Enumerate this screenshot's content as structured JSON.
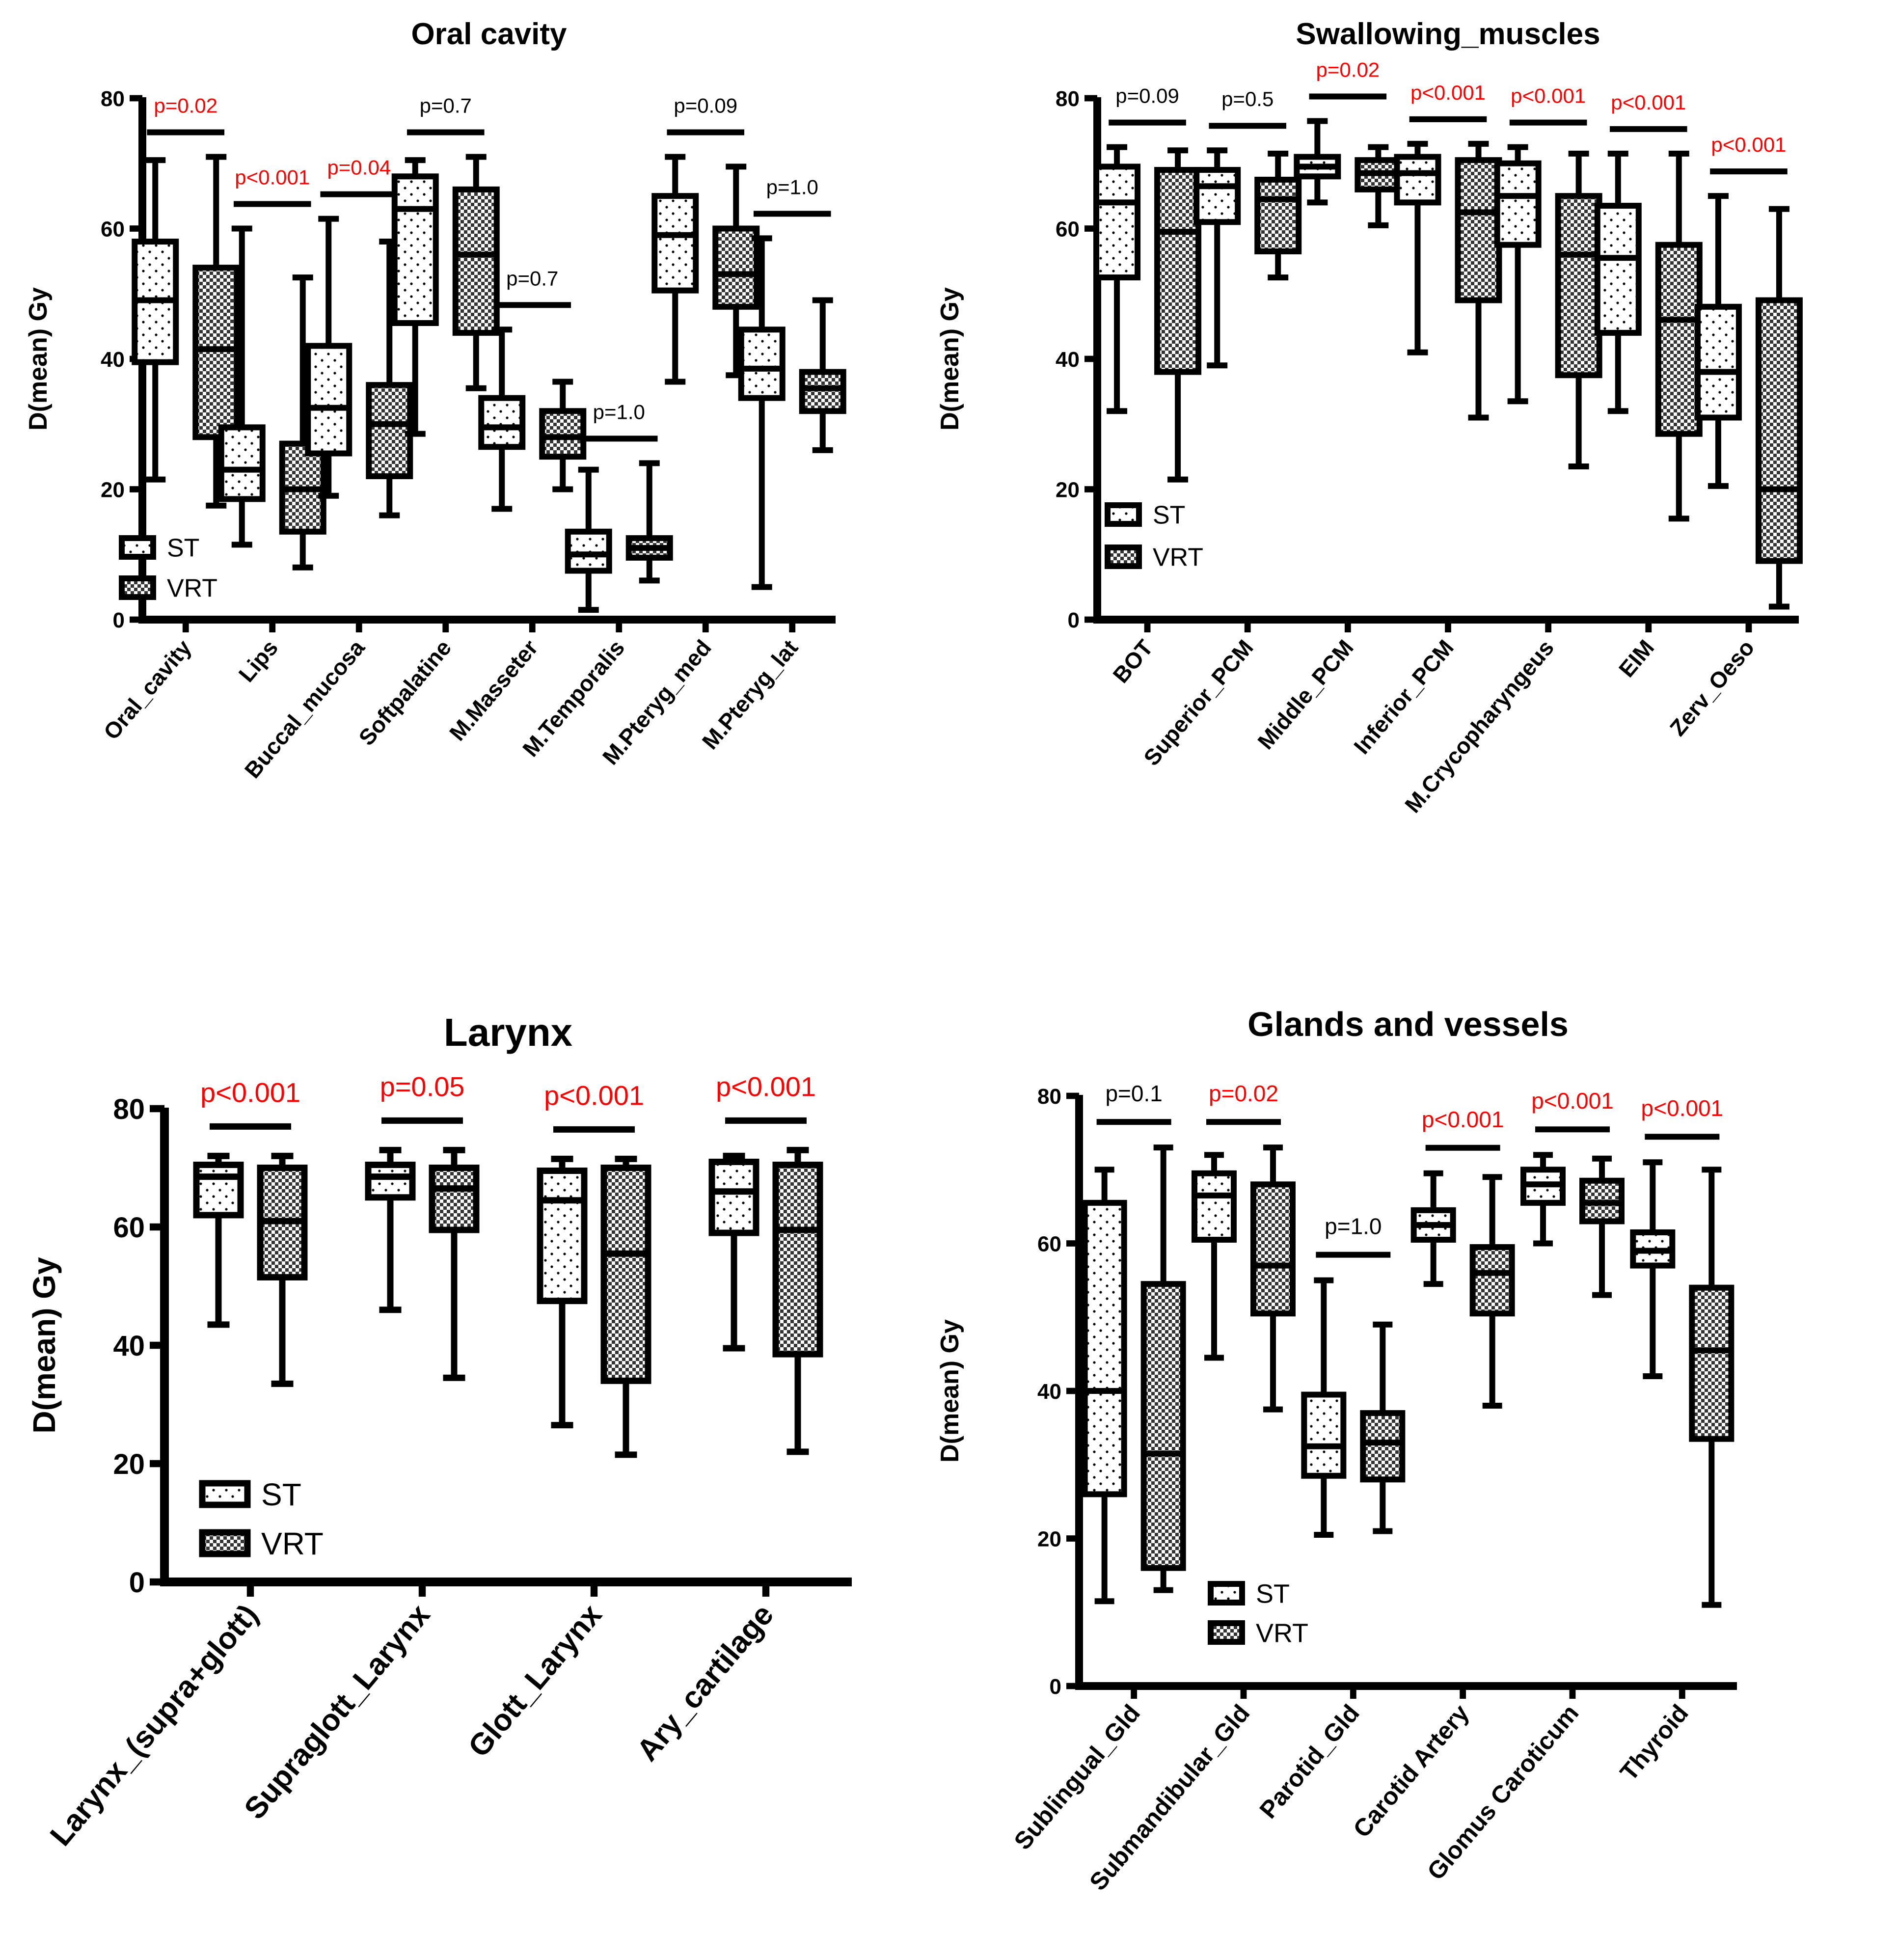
{
  "figure": {
    "legend_labels": [
      "ST",
      "VRT"
    ],
    "colors": {
      "significant": "#ff0000",
      "ns": "#000000",
      "stroke": "#000000",
      "fill": "#ffffff"
    }
  },
  "chart_data": [
    {
      "type": "box",
      "title": "Oral cavity",
      "ylabel": "D(mean) Gy",
      "ylim": [
        0,
        80
      ],
      "yticks": [
        0,
        20,
        40,
        60,
        80
      ],
      "legend_position": "bottom-left",
      "series": [
        "ST",
        "VRT"
      ],
      "categories": [
        "Oral_cavity",
        "Lips",
        "Buccal_mucosa",
        "Softpalatine",
        "M.Masseter",
        "M.Temporalis",
        "M.Pteryg_med",
        "M.Pteryg_lat"
      ],
      "boxes": [
        {
          "ST": [
            21.5,
            39.5,
            49,
            58,
            70.5
          ],
          "VRT": [
            17.5,
            28,
            41.5,
            54,
            71
          ]
        },
        {
          "ST": [
            11.5,
            18.5,
            23,
            29.5,
            60
          ],
          "VRT": [
            8,
            13.5,
            20,
            27,
            52.5
          ]
        },
        {
          "ST": [
            19,
            25.5,
            32.5,
            42,
            61.5
          ],
          "VRT": [
            16,
            22,
            30,
            36,
            58
          ]
        },
        {
          "ST": [
            28.5,
            45.5,
            63,
            68,
            70.5
          ],
          "VRT": [
            35.5,
            44,
            56,
            66,
            71
          ]
        },
        {
          "ST": [
            17,
            26.5,
            29.5,
            34,
            44.5
          ],
          "VRT": [
            20,
            25,
            28,
            32,
            36.5
          ]
        },
        {
          "ST": [
            1.5,
            7.5,
            10,
            13.5,
            23
          ],
          "VRT": [
            6,
            9.5,
            11,
            12.5,
            24
          ]
        },
        {
          "ST": [
            36.5,
            50.5,
            59,
            65,
            71
          ],
          "VRT": [
            37.5,
            48,
            53,
            60,
            69.5
          ]
        },
        {
          "ST": [
            5,
            34,
            38.5,
            44.5,
            58.5
          ],
          "VRT": [
            26,
            32,
            35.5,
            38,
            49
          ]
        }
      ],
      "pvalues": [
        "p=0.02",
        "p<0.001",
        "p=0.04",
        "p=0.7",
        "p=0.7",
        "p=1.0",
        "p=0.09",
        "p=1.0"
      ],
      "pvalue_significant": [
        true,
        true,
        true,
        false,
        false,
        false,
        false,
        false
      ]
    },
    {
      "type": "box",
      "title": "Swallowing_muscles",
      "ylabel": "D(mean) Gy",
      "ylim": [
        0,
        80
      ],
      "yticks": [
        0,
        20,
        40,
        60,
        80
      ],
      "legend_position": "bottom-left",
      "series": [
        "ST",
        "VRT"
      ],
      "categories": [
        "BOT",
        "Superior_PCM",
        "Middle_PCM",
        "Inferior_PCM",
        "M.Crycopharyngeus",
        "EIM",
        "Zerv_Oeso"
      ],
      "boxes": [
        {
          "ST": [
            32,
            52.5,
            64,
            69.5,
            72.5
          ],
          "VRT": [
            21.5,
            38,
            59.5,
            69,
            72
          ]
        },
        {
          "ST": [
            39,
            61,
            66.5,
            69,
            72
          ],
          "VRT": [
            52.5,
            56.5,
            64.5,
            67.5,
            71.5
          ]
        },
        {
          "ST": [
            64,
            68,
            69.5,
            71,
            76.5
          ],
          "VRT": [
            60.5,
            66,
            68.5,
            70.5,
            72.5
          ]
        },
        {
          "ST": [
            41,
            64,
            68.5,
            71,
            73
          ],
          "VRT": [
            31,
            49,
            62.5,
            70.5,
            73
          ]
        },
        {
          "ST": [
            33.5,
            57.5,
            65,
            70,
            72.5
          ],
          "VRT": [
            23.5,
            37.5,
            56,
            65,
            71.5
          ]
        },
        {
          "ST": [
            32,
            44,
            55.5,
            63.5,
            71.5
          ],
          "VRT": [
            15.5,
            28.5,
            46,
            57.5,
            71.5
          ]
        },
        {
          "ST": [
            20.5,
            31,
            38,
            48,
            65
          ],
          "VRT": [
            2,
            9,
            20,
            49,
            63
          ]
        }
      ],
      "pvalues": [
        "p=0.09",
        "p=0.5",
        "p=0.02",
        "p<0.001",
        "p<0.001",
        "p<0.001",
        "p<0.001"
      ],
      "pvalue_significant": [
        false,
        false,
        true,
        true,
        true,
        true,
        true
      ]
    },
    {
      "type": "box",
      "title": "Larynx",
      "ylabel": "D(mean) Gy",
      "ylim": [
        0,
        80
      ],
      "yticks": [
        0,
        20,
        40,
        60,
        80
      ],
      "legend_position": "bottom-left",
      "series": [
        "ST",
        "VRT"
      ],
      "categories": [
        "Larynx_(supra+glott)",
        "Supraglott_Larynx",
        "Glott_Larynx",
        "Ary_cartilage"
      ],
      "boxes": [
        {
          "ST": [
            43.5,
            62,
            68.5,
            70.5,
            72
          ],
          "VRT": [
            33.5,
            51.5,
            61,
            70,
            72
          ]
        },
        {
          "ST": [
            46,
            65,
            68.5,
            70.5,
            73
          ],
          "VRT": [
            34.5,
            59.5,
            66.5,
            70,
            73
          ]
        },
        {
          "ST": [
            26.5,
            47.5,
            64.5,
            69.5,
            71.5
          ],
          "VRT": [
            21.5,
            34,
            55.5,
            70,
            71.5
          ]
        },
        {
          "ST": [
            39.5,
            59,
            66,
            71,
            72
          ],
          "VRT": [
            22,
            38.5,
            59.5,
            70.5,
            73
          ]
        }
      ],
      "pvalues": [
        "p<0.001",
        "p=0.05",
        "p<0.001",
        "p<0.001"
      ],
      "pvalue_significant": [
        true,
        true,
        true,
        true
      ]
    },
    {
      "type": "box",
      "title": "Glands and vessels",
      "ylabel": "D(mean) Gy",
      "ylim": [
        0,
        80
      ],
      "yticks": [
        0,
        20,
        40,
        60,
        80
      ],
      "legend_position": "bottom-center",
      "series": [
        "ST",
        "VRT"
      ],
      "categories": [
        "Sublingual_Gld",
        "Submandibular_Gld",
        "Parotid_Gld",
        "Carotid Artery",
        "Glomus Caroticum",
        "Thyroid"
      ],
      "boxes": [
        {
          "ST": [
            11.5,
            26,
            40,
            65.5,
            70
          ],
          "VRT": [
            13,
            16,
            31.5,
            54.5,
            73
          ]
        },
        {
          "ST": [
            44.5,
            60.5,
            66.5,
            69.5,
            72
          ],
          "VRT": [
            37.5,
            50.5,
            57,
            68,
            73
          ]
        },
        {
          "ST": [
            20.5,
            28.5,
            32.5,
            39.5,
            55
          ],
          "VRT": [
            21,
            28,
            33,
            37,
            49
          ]
        },
        {
          "ST": [
            54.5,
            60.5,
            62.5,
            64.5,
            69.5
          ],
          "VRT": [
            38,
            50.5,
            56,
            59.5,
            69
          ]
        },
        {
          "ST": [
            60,
            65.5,
            68,
            70,
            72
          ],
          "VRT": [
            53,
            63,
            65.5,
            68.5,
            71.5
          ]
        },
        {
          "ST": [
            42,
            57,
            59,
            61.5,
            71
          ],
          "VRT": [
            11,
            33.5,
            45.5,
            54,
            70
          ]
        }
      ],
      "pvalues": [
        "p=0.1",
        "p=0.02",
        "p=1.0",
        "p<0.001",
        "p<0.001",
        "p<0.001"
      ],
      "pvalue_significant": [
        false,
        true,
        false,
        true,
        true,
        true
      ]
    }
  ]
}
